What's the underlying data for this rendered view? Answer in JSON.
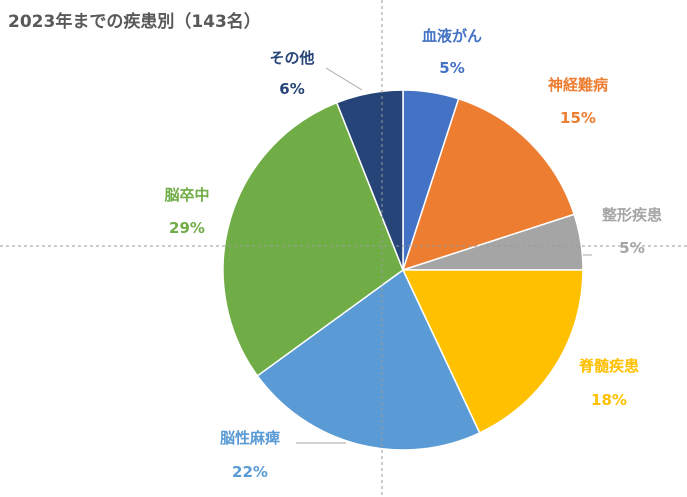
{
  "chart_data": {
    "type": "pie",
    "title": "2023年までの疾患別（143名）",
    "start_angle_deg": 0,
    "direction": "clockwise",
    "slices": [
      {
        "label": "血液がん",
        "percent": 5,
        "percent_label": "5%",
        "color": "#4472c4"
      },
      {
        "label": "神経難病",
        "percent": 15,
        "percent_label": "15%",
        "color": "#ed7d31"
      },
      {
        "label": "整形疾患",
        "percent": 5,
        "percent_label": "5%",
        "color": "#a5a5a5"
      },
      {
        "label": "脊髄疾患",
        "percent": 18,
        "percent_label": "18%",
        "color": "#ffc000"
      },
      {
        "label": "脳性麻痺",
        "percent": 22,
        "percent_label": "22%",
        "color": "#5b9bd5"
      },
      {
        "label": "脳卒中",
        "percent": 29,
        "percent_label": "29%",
        "color": "#70ad47"
      },
      {
        "label": "その他",
        "percent": 6,
        "percent_label": "6%",
        "color": "#264478"
      }
    ],
    "legend": "none"
  }
}
